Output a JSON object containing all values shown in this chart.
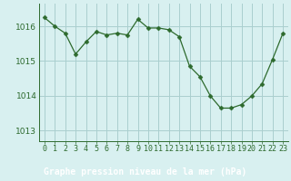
{
  "x": [
    0,
    1,
    2,
    3,
    4,
    5,
    6,
    7,
    8,
    9,
    10,
    11,
    12,
    13,
    14,
    15,
    16,
    17,
    18,
    19,
    20,
    21,
    22,
    23
  ],
  "y": [
    1016.25,
    1016.0,
    1015.8,
    1015.2,
    1015.55,
    1015.85,
    1015.75,
    1015.8,
    1015.75,
    1016.2,
    1015.95,
    1015.95,
    1015.9,
    1015.7,
    1014.85,
    1014.55,
    1014.0,
    1013.65,
    1013.65,
    1013.75,
    1014.0,
    1014.35,
    1015.05,
    1015.8
  ],
  "line_color": "#2d6a2d",
  "marker": "D",
  "marker_size": 2.5,
  "bg_color": "#d8f0f0",
  "grid_color": "#aacece",
  "ylabel_ticks": [
    1013,
    1014,
    1015,
    1016
  ],
  "xlabel_label": "Graphe pression niveau de la mer (hPa)",
  "xlim": [
    -0.5,
    23.5
  ],
  "ylim": [
    1012.7,
    1016.65
  ],
  "tick_label_color": "#2d6a2d",
  "bottom_bar_color": "#2d6a2d",
  "bottom_text_color": "#ffffff",
  "tick_fontsize": 6.0,
  "ylabel_fontsize": 6.5
}
